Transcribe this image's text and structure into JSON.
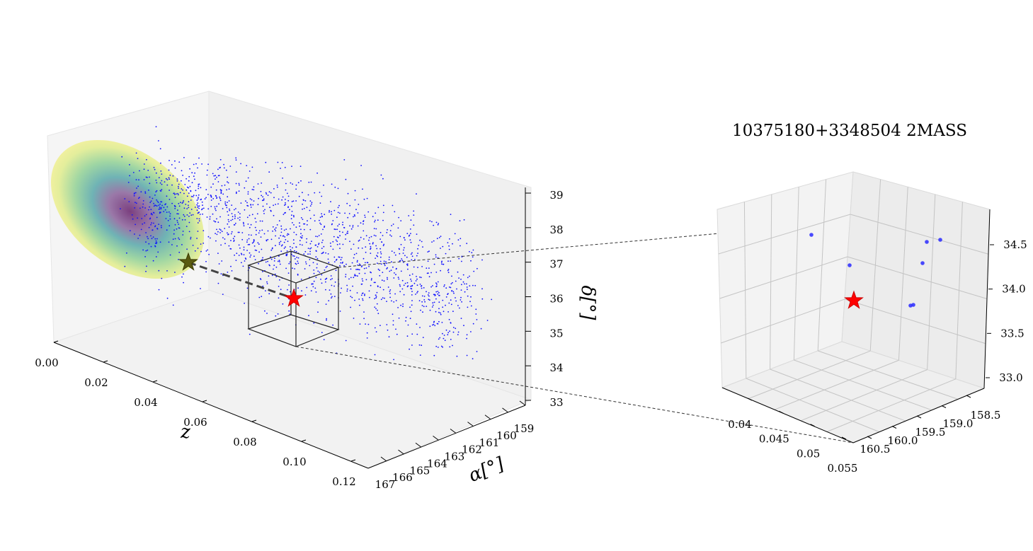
{
  "chart_data": [
    {
      "type": "scatter3d",
      "title": "",
      "axes": {
        "z": {
          "label": "z",
          "ticks": [
            "0.00",
            "0.02",
            "0.04",
            "0.06",
            "0.08",
            "0.10",
            "0.12"
          ],
          "range": [
            0.0,
            0.125
          ]
        },
        "alpha": {
          "label": "α[°]",
          "ticks": [
            "167",
            "166",
            "165",
            "164",
            "163",
            "162",
            "161",
            "160",
            "159"
          ],
          "range": [
            167,
            158.5
          ]
        },
        "delta": {
          "label": "δ[°]",
          "ticks": [
            "33",
            "34",
            "35",
            "36",
            "37",
            "38",
            "39"
          ],
          "range": [
            33,
            39
          ]
        }
      },
      "grid": false,
      "series": [
        {
          "kind": "density-projection",
          "color_scale": "viridis_r",
          "center": {
            "alpha": 163.5,
            "delta": 37.8
          }
        },
        {
          "kind": "points",
          "color": "#1010ff",
          "count": 1500,
          "alpha_range": [
            159,
            166.5
          ],
          "delta_range": [
            33.5,
            38.8
          ],
          "z_range": [
            0.01,
            0.12
          ]
        },
        {
          "kind": "star-marker",
          "color": "#ff0000",
          "z": 0.047,
          "alpha": 159.8,
          "delta": 33.6
        },
        {
          "kind": "star-marker-projection",
          "color": "#5a5a10"
        }
      ],
      "zoom_box": {
        "z": [
          0.037,
          0.057
        ],
        "alpha": [
          158.3,
          160.7
        ],
        "delta": [
          32.9,
          34.9
        ]
      }
    },
    {
      "type": "scatter3d",
      "title": "10375180+3348504 2MASS",
      "axes": {
        "z": {
          "ticks": [
            "0.04",
            "0.045",
            "0.05",
            "0.055"
          ],
          "range": [
            0.037,
            0.057
          ]
        },
        "alpha": {
          "ticks": [
            "160.5",
            "160.0",
            "159.5",
            "159.0",
            "158.5"
          ],
          "range": [
            160.7,
            158.3
          ]
        },
        "delta": {
          "ticks": [
            "33.0",
            "33.5",
            "34.0",
            "34.5"
          ],
          "range": [
            32.9,
            34.85
          ]
        }
      },
      "grid": true,
      "points": [
        {
          "x": 1146,
          "y": 332
        },
        {
          "x": 1200,
          "y": 375
        },
        {
          "x": 1309,
          "y": 342
        },
        {
          "x": 1328,
          "y": 339
        },
        {
          "x": 1303,
          "y": 372
        },
        {
          "x": 1286,
          "y": 432
        },
        {
          "x": 1290,
          "y": 431
        }
      ],
      "star": {
        "color": "#ff0000"
      }
    }
  ]
}
